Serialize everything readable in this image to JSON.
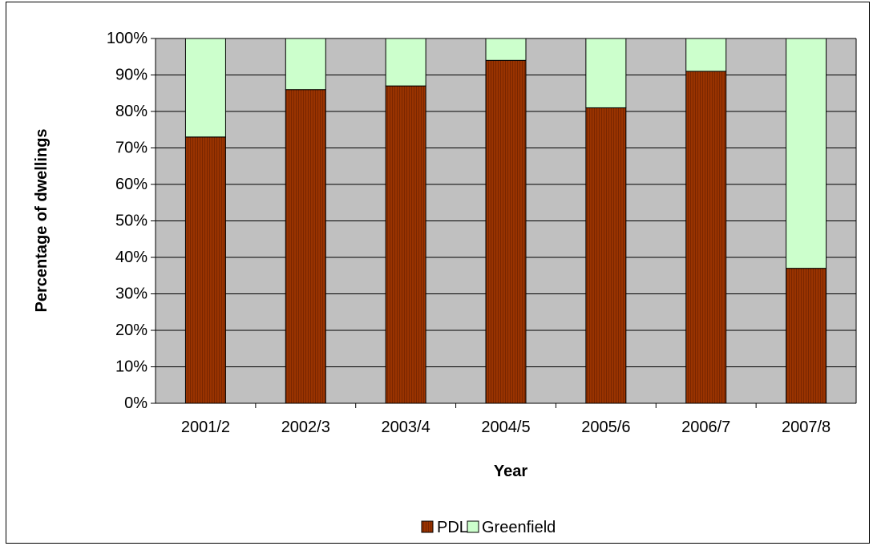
{
  "chart_data": {
    "type": "bar",
    "stacked": true,
    "title": "",
    "xlabel": "Year",
    "ylabel": "Percentage of dwellings",
    "categories": [
      "2001/2",
      "2002/3",
      "2003/4",
      "2004/5",
      "2005/6",
      "2006/7",
      "2007/8"
    ],
    "series": [
      {
        "name": "PDL",
        "values": [
          73,
          86,
          87,
          94,
          81,
          91,
          37
        ],
        "color": "#993300"
      },
      {
        "name": "Greenfield",
        "values": [
          27,
          14,
          13,
          6,
          19,
          9,
          63
        ],
        "color": "#ccffcc"
      }
    ],
    "ylim": [
      0,
      100
    ],
    "yticks": [
      "0%",
      "10%",
      "20%",
      "30%",
      "40%",
      "50%",
      "60%",
      "70%",
      "80%",
      "90%",
      "100%"
    ],
    "grid": true,
    "plot_background": "#c0c0c0",
    "legend_position": "bottom"
  }
}
